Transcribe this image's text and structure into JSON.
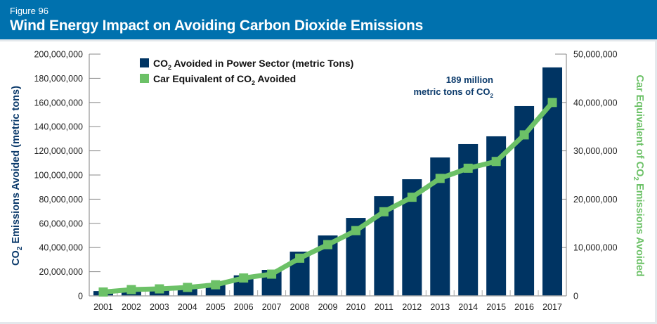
{
  "header": {
    "figure_label": "Figure 96",
    "title": "Wind Energy Impact on Avoiding Carbon Dioxide Emissions"
  },
  "colors": {
    "header_bg": "#0071ae",
    "bar": "#003463",
    "line": "#6cc167",
    "annotation": "#0b3a6b"
  },
  "chart_data": {
    "type": "bar+line",
    "title": "Wind Energy Impact on Avoiding Carbon Dioxide Emissions",
    "xlabel": "",
    "categories": [
      "2001",
      "2002",
      "2003",
      "2004",
      "2005",
      "2006",
      "2007",
      "2008",
      "2009",
      "2010",
      "2011",
      "2012",
      "2013",
      "2014",
      "2015",
      "2016",
      "2017"
    ],
    "series": [
      {
        "name": "CO2 Avoided in Power Sector (metric Tons)",
        "legend_main": "CO",
        "legend_sub": "2",
        "legend_rest": " Avoided in Power Sector (metric Tons)",
        "type": "bar",
        "axis": "left",
        "values": [
          4000000,
          5500000,
          6000000,
          6500000,
          10500000,
          17000000,
          21500000,
          36600000,
          50000000,
          64500000,
          82500000,
          96500000,
          114500000,
          125600000,
          132000000,
          157000000,
          189000000
        ]
      },
      {
        "name": "Car Equivalent of CO2 Avoided",
        "legend_main": "Car Equivalent of CO",
        "legend_sub": "2",
        "legend_rest": " Avoided",
        "type": "line",
        "axis": "right",
        "values": [
          800000,
          1300000,
          1450000,
          1750000,
          2300000,
          3700000,
          4500000,
          7800000,
          10600000,
          13500000,
          17400000,
          20400000,
          24300000,
          26400000,
          27800000,
          33300000,
          40000000
        ]
      }
    ],
    "y_left": {
      "label_main": "CO",
      "label_sub": "2",
      "label_rest": " Emissions Avoided (metric tons)",
      "range": [
        0,
        200000000
      ],
      "ticks": [
        "0",
        "20,000,000",
        "40,000,000",
        "60,000,000",
        "80,000,000",
        "100,000,000",
        "120,000,000",
        "140,000,000",
        "160,000,000",
        "180,000,000",
        "200,000,000"
      ]
    },
    "y_right": {
      "label_main": "Car Equivalent of CO",
      "label_sub": "2",
      "label_rest": " Emissions Avoided",
      "range": [
        0,
        50000000
      ],
      "ticks": [
        "0",
        "10,000,000",
        "20,000,000",
        "30,000,000",
        "40,000,000",
        "50,000,000"
      ]
    },
    "annotation": {
      "line1": "189 million",
      "line2_main": "metric tons of CO",
      "line2_sub": "2",
      "target_category": "2017"
    },
    "legend_position": "top-left",
    "grid": false
  }
}
